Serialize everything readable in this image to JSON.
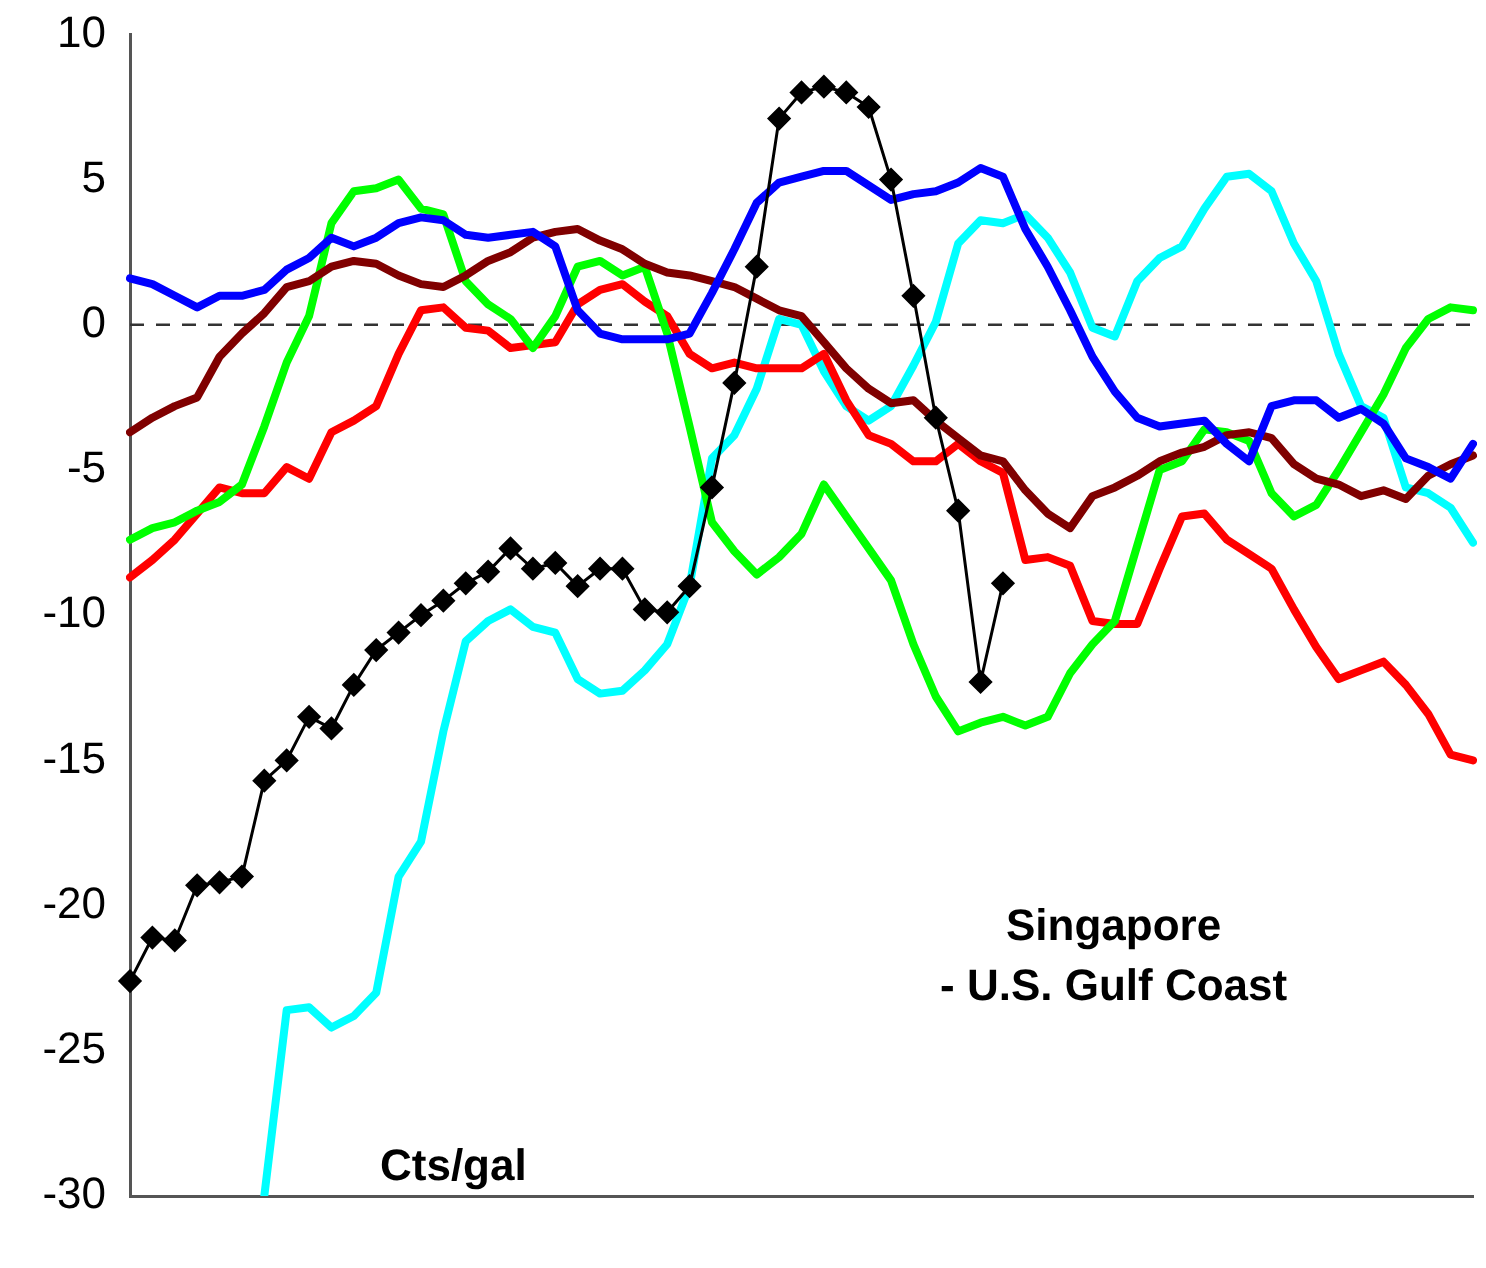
{
  "chart_data": {
    "type": "line",
    "categories": [
      null,
      null,
      null,
      null,
      null,
      null,
      null,
      null,
      null,
      null,
      null,
      null,
      null,
      null,
      null,
      null,
      null,
      null,
      null,
      null,
      null,
      null,
      null,
      null,
      null,
      null,
      null,
      null,
      null,
      null,
      null,
      null,
      null,
      null,
      null,
      null,
      null,
      null,
      null,
      null,
      null,
      null,
      null,
      null,
      null,
      null,
      null,
      null,
      null,
      null,
      null,
      null,
      null,
      null,
      null,
      null,
      null,
      null,
      null,
      null,
      null
    ],
    "ylim": [
      -30,
      10
    ],
    "yticks": [
      -30,
      -25,
      -20,
      -15,
      -10,
      -5,
      0,
      5,
      10
    ],
    "grid": false,
    "legend": false,
    "marker": "none",
    "line_style": "solid",
    "ref_lines": [
      {
        "axis": "y",
        "value": 0,
        "color": "#333333",
        "line_style": "dashed"
      }
    ],
    "annotations": [
      "Singapore\n- U.S. Gulf Coast",
      "Cts/gal"
    ],
    "series": [
      {
        "color": "#0000ff",
        "values": [
          1.6,
          1.4,
          1.0,
          0.6,
          1.0,
          1.0,
          1.2,
          1.9,
          2.3,
          3.0,
          2.7,
          3.0,
          3.5,
          3.7,
          3.6,
          3.1,
          3.0,
          3.1,
          3.2,
          2.7,
          0.5,
          -0.3,
          -0.5,
          -0.5,
          -0.5,
          -0.3,
          1.1,
          2.6,
          4.2,
          4.9,
          5.1,
          5.3,
          5.3,
          4.8,
          4.3,
          4.5,
          4.6,
          4.9,
          5.4,
          5.1,
          3.3,
          2.0,
          0.5,
          -1.1,
          -2.3,
          -3.2,
          -3.5,
          -3.4,
          -3.3,
          -4.1,
          -4.7,
          -2.8,
          -2.6,
          -2.6,
          -3.2,
          -2.9,
          -3.4,
          -4.6,
          -4.9,
          -5.3,
          -4.1
        ]
      },
      {
        "color": "#800000",
        "values": [
          -3.7,
          -3.2,
          -2.8,
          -2.5,
          -1.1,
          -0.3,
          0.4,
          1.3,
          1.5,
          2.0,
          2.2,
          2.1,
          1.7,
          1.4,
          1.3,
          1.7,
          2.2,
          2.5,
          3.0,
          3.2,
          3.3,
          2.9,
          2.6,
          2.1,
          1.8,
          1.7,
          1.5,
          1.3,
          0.9,
          0.5,
          0.3,
          -0.6,
          -1.5,
          -2.2,
          -2.7,
          -2.6,
          -3.3,
          -3.9,
          -4.5,
          -4.7,
          -5.7,
          -6.5,
          -7.0,
          -5.9,
          -5.6,
          -5.2,
          -4.7,
          -4.4,
          -4.2,
          -3.8,
          -3.7,
          -3.9,
          -4.8,
          -5.3,
          -5.5,
          -5.9,
          -5.7,
          -6.0,
          -5.2,
          -4.8,
          -4.5
        ]
      },
      {
        "color": "#00ff00",
        "values": [
          -7.4,
          -7.0,
          -6.8,
          -6.4,
          -6.1,
          -5.5,
          -3.5,
          -1.3,
          0.3,
          3.5,
          4.6,
          4.7,
          5.0,
          4.0,
          3.8,
          1.5,
          0.7,
          0.2,
          -0.8,
          0.3,
          2.0,
          2.2,
          1.7,
          2.0,
          -0.3,
          -3.5,
          -6.8,
          -7.8,
          -8.6,
          -8.0,
          -7.2,
          -5.5,
          -6.6,
          -7.7,
          -8.8,
          -11.0,
          -12.8,
          -14.0,
          -13.7,
          -13.5,
          -13.8,
          -13.5,
          -12.0,
          -11.0,
          -10.2,
          -7.6,
          -5.0,
          -4.7,
          -3.6,
          -3.7,
          -4.0,
          -5.8,
          -6.6,
          -6.2,
          -5.0,
          -3.7,
          -2.4,
          -0.8,
          0.2,
          0.6,
          0.5
        ]
      },
      {
        "color": "#ff0000",
        "values": [
          -8.7,
          -8.1,
          -7.4,
          -6.5,
          -5.6,
          -5.8,
          -5.8,
          -4.9,
          -5.3,
          -3.7,
          -3.3,
          -2.8,
          -1.0,
          0.5,
          0.6,
          -0.1,
          -0.2,
          -0.8,
          -0.7,
          -0.6,
          0.7,
          1.2,
          1.4,
          0.8,
          0.3,
          -1.0,
          -1.5,
          -1.3,
          -1.5,
          -1.5,
          -1.5,
          -1.0,
          -2.6,
          -3.8,
          -4.1,
          -4.7,
          -4.7,
          -4.1,
          -4.7,
          -5.1,
          -8.1,
          -8.0,
          -8.3,
          -10.2,
          -10.3,
          -10.3,
          -8.4,
          -6.6,
          -6.5,
          -7.4,
          -7.9,
          -8.4,
          -9.8,
          -11.1,
          -12.2,
          -11.9,
          -11.6,
          -12.4,
          -13.4,
          -14.8,
          -15.0
        ]
      },
      {
        "color": "#00ffff",
        "values": [
          null,
          null,
          null,
          null,
          null,
          null,
          -30.0,
          -23.6,
          -23.5,
          -24.2,
          -23.8,
          -23.0,
          -19.0,
          -17.8,
          -14.0,
          -10.9,
          -10.2,
          -9.8,
          -10.4,
          -10.6,
          -12.2,
          -12.7,
          -12.6,
          -11.9,
          -11.0,
          -9.0,
          -4.6,
          -3.8,
          -2.2,
          0.2,
          0.0,
          -1.6,
          -2.8,
          -3.3,
          -2.8,
          -1.4,
          0.1,
          2.8,
          3.6,
          3.5,
          3.8,
          3.0,
          1.8,
          -0.1,
          -0.4,
          1.5,
          2.3,
          2.7,
          4.0,
          5.1,
          5.2,
          4.6,
          2.8,
          1.5,
          -1.0,
          -2.8,
          -3.2,
          -5.6,
          -5.8,
          -6.3,
          -7.5
        ]
      },
      {
        "color": "#000000",
        "marker": "diamond",
        "values": [
          -22.6,
          -21.1,
          -21.2,
          -19.3,
          -19.2,
          -19.0,
          -15.7,
          -15.0,
          -13.5,
          -13.9,
          -12.4,
          -11.2,
          -10.6,
          -10.0,
          -9.5,
          -8.9,
          -8.5,
          -7.7,
          -8.4,
          -8.2,
          -9.0,
          -8.4,
          -8.4,
          -9.8,
          -9.9,
          -9.0,
          -5.6,
          -2.0,
          2.0,
          7.1,
          8.0,
          8.2,
          8.0,
          7.5,
          5.0,
          1.0,
          -3.2,
          -6.4,
          -12.3,
          -8.9,
          null,
          null,
          null,
          null,
          null,
          null,
          null,
          null,
          null,
          null,
          null,
          null,
          null,
          null,
          null,
          null,
          null,
          null,
          null,
          null,
          null
        ]
      }
    ]
  }
}
